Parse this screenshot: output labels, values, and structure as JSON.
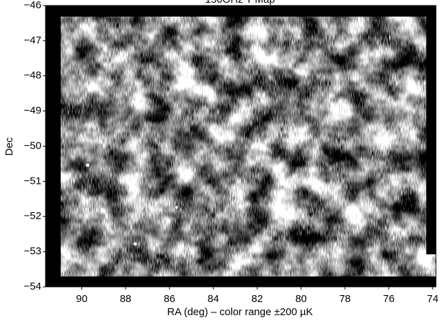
{
  "chart_data": {
    "type": "image",
    "title": "150GHz T Map",
    "x_label": "RA (deg) – color range ±200 µK",
    "y_label": "Dec",
    "xlim": [
      91.65,
      73.85
    ],
    "ylim": [
      -54,
      -46
    ],
    "xticks": [
      90,
      88,
      86,
      84,
      82,
      80,
      78,
      76,
      74
    ],
    "yticks": [
      {
        "value": -46,
        "label": "−46"
      },
      {
        "value": -47,
        "label": "−47"
      },
      {
        "value": -48,
        "label": "−48"
      },
      {
        "value": -49,
        "label": "−49"
      },
      {
        "value": -50,
        "label": "−50"
      },
      {
        "value": -51,
        "label": "−51"
      },
      {
        "value": -52,
        "label": "−52"
      },
      {
        "value": -53,
        "label": "−53"
      },
      {
        "value": -54,
        "label": "−54"
      }
    ],
    "colormap": "gray"
  }
}
